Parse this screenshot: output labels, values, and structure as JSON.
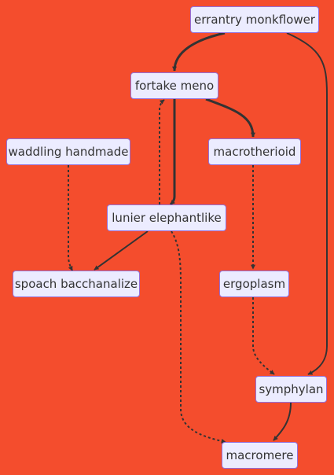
{
  "diagram": {
    "nodes": {
      "errantry_monkflower": "errantry monkflower",
      "fortake_meno": "fortake meno",
      "waddling_handmade": "waddling handmade",
      "macrotherioid": "macrotherioid",
      "lunier_elephantlike": "lunier elephantlike",
      "spoach_bacchanalize": "spoach bacchanalize",
      "ergoplasm": "ergoplasm",
      "symphylan": "symphylan",
      "macromere": "macromere"
    },
    "edges": [
      {
        "from": "errantry_monkflower",
        "to": "fortake_meno",
        "style": "thick"
      },
      {
        "from": "errantry_monkflower",
        "to": "symphylan",
        "style": "solid"
      },
      {
        "from": "fortake_meno",
        "to": "macrotherioid",
        "style": "thick"
      },
      {
        "from": "fortake_meno",
        "to": "lunier_elephantlike",
        "style": "thick"
      },
      {
        "from": "lunier_elephantlike",
        "to": "fortake_meno",
        "style": "dotted"
      },
      {
        "from": "waddling_handmade",
        "to": "spoach_bacchanalize",
        "style": "dotted"
      },
      {
        "from": "lunier_elephantlike",
        "to": "spoach_bacchanalize",
        "style": "solid"
      },
      {
        "from": "lunier_elephantlike",
        "to": "macromere",
        "style": "dotted"
      },
      {
        "from": "macrotherioid",
        "to": "ergoplasm",
        "style": "dotted"
      },
      {
        "from": "ergoplasm",
        "to": "symphylan",
        "style": "dotted"
      },
      {
        "from": "symphylan",
        "to": "macromere",
        "style": "solid"
      }
    ]
  },
  "colors": {
    "background": "#f44d2d",
    "node_fill": "#ececff",
    "node_border": "#9370db",
    "edge": "#333333"
  }
}
